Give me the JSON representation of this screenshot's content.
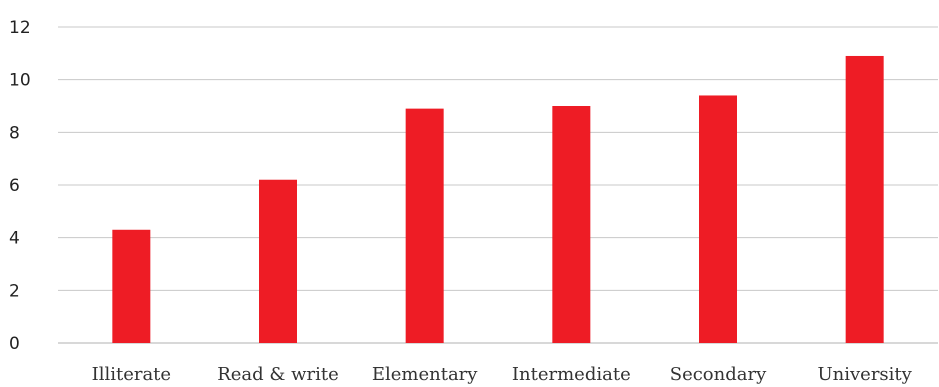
{
  "chart_data": {
    "type": "bar",
    "title": "",
    "xlabel": "",
    "ylabel": "",
    "categories": [
      "Illiterate",
      "Read & write",
      "Elementary",
      "Intermediate",
      "Secondary",
      "University"
    ],
    "values": [
      4.3,
      6.2,
      8.9,
      9.0,
      9.4,
      10.9
    ],
    "ylim": [
      0,
      12
    ],
    "yticks": [
      0,
      2,
      4,
      6,
      8,
      10,
      12
    ],
    "grid": true,
    "legend": "none",
    "bar_color": "#ee1c25"
  }
}
